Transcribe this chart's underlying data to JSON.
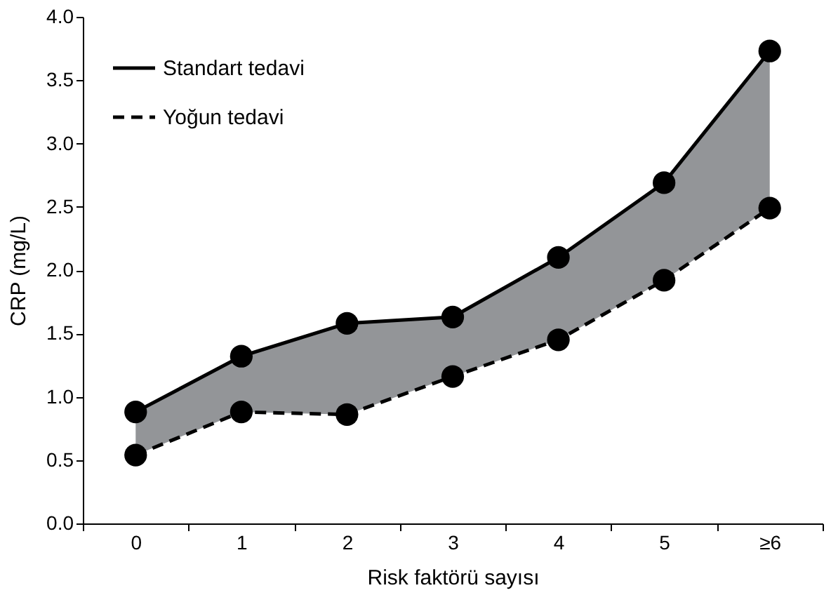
{
  "chart_data": {
    "type": "line",
    "xlabel": "Risk faktörü sayısı",
    "ylabel": "CRP (mg/L)",
    "categories": [
      "0",
      "1",
      "2",
      "3",
      "4",
      "5",
      "≥6"
    ],
    "series": [
      {
        "name": "Standart tedavi",
        "color": "#000000",
        "line_style": "solid",
        "values": [
          0.88,
          1.32,
          1.58,
          1.63,
          2.1,
          2.69,
          3.73
        ],
        "lower": [
          0.54,
          0.88,
          0.86,
          1.16,
          1.45,
          1.92,
          2.49
        ],
        "upper": [
          0.88,
          1.32,
          1.58,
          1.63,
          2.1,
          2.69,
          3.73
        ]
      },
      {
        "name": "Yoğun tedavi",
        "color": "#000000",
        "line_style": "dashed",
        "values": [
          0.54,
          0.88,
          0.86,
          1.16,
          1.45,
          1.92,
          2.49
        ]
      }
    ],
    "ylim": [
      0,
      4
    ],
    "yticks": [
      {
        "value": 0,
        "label": "0.0"
      },
      0.5,
      {
        "value": 1,
        "label": "1.0"
      },
      1.5,
      {
        "value": 2,
        "label": "2.0"
      },
      2.5,
      {
        "value": 3,
        "label": "3.0"
      },
      3.5,
      {
        "value": 4,
        "label": "4.0"
      }
    ],
    "marker": "circle",
    "grid": false,
    "legend": "top left"
  }
}
